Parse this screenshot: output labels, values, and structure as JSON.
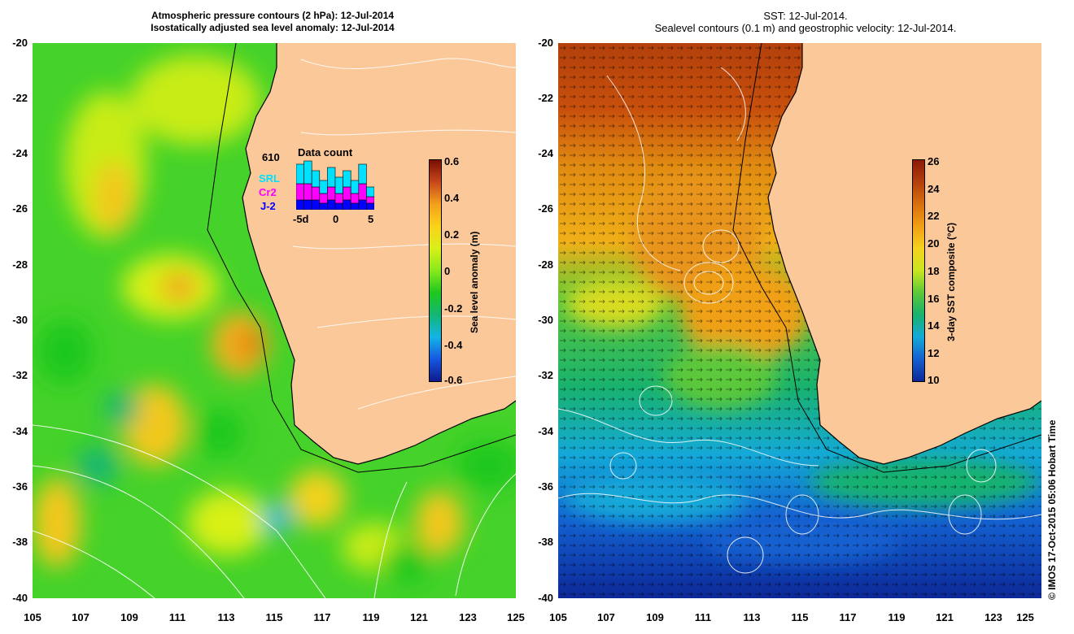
{
  "left_panel": {
    "title_line1": "Atmospheric pressure contours (2 hPa): 12-Jul-2014",
    "title_line2": "Isostatically adjusted sea level anomaly: 12-Jul-2014",
    "colorbar": {
      "title": "Sea level anomaly (m)",
      "ticks": [
        "0.6",
        "0.4",
        "0.2",
        "0",
        "-0.2",
        "-0.4",
        "-0.6"
      ],
      "colors": [
        "#7a0f04",
        "#c8481b",
        "#f3a11c",
        "#fbd21a",
        "#d8f019",
        "#88e81c",
        "#1ec81e",
        "#13b673",
        "#14b4e6",
        "#1657e0",
        "#0f1a8c"
      ]
    },
    "data_count": {
      "title": "Data count",
      "total": "610",
      "satellites": [
        {
          "name": "SRL",
          "color": "#00e0ff"
        },
        {
          "name": "Cr2",
          "color": "#ff00ff"
        },
        {
          "name": "J-2",
          "color": "#0000ff"
        }
      ],
      "axis_ticks": [
        "-5d",
        "0",
        "5"
      ],
      "bars": [
        {
          "j2": 3,
          "cr2": 5,
          "srl": 6
        },
        {
          "j2": 3,
          "cr2": 5,
          "srl": 7
        },
        {
          "j2": 3,
          "cr2": 4,
          "srl": 5
        },
        {
          "j2": 2,
          "cr2": 3,
          "srl": 4
        },
        {
          "j2": 3,
          "cr2": 4,
          "srl": 6
        },
        {
          "j2": 2,
          "cr2": 3,
          "srl": 5
        },
        {
          "j2": 3,
          "cr2": 4,
          "srl": 5
        },
        {
          "j2": 2,
          "cr2": 3,
          "srl": 4
        },
        {
          "j2": 3,
          "cr2": 5,
          "srl": 6
        },
        {
          "j2": 2,
          "cr2": 2,
          "srl": 3
        }
      ]
    }
  },
  "right_panel": {
    "title_line1": "SST: 12-Jul-2014.",
    "title_line2": "Sealevel contours (0.1 m) and geostrophic velocity: 12-Jul-2014.",
    "colorbar": {
      "title": "3-day SST composite (°C)",
      "ticks": [
        "26",
        "24",
        "22",
        "20",
        "18",
        "16",
        "14",
        "12",
        "10"
      ],
      "colors": [
        "#8b1a0a",
        "#b3400c",
        "#d9700f",
        "#f0a015",
        "#f5d21e",
        "#c8e61e",
        "#5cc83a",
        "#18b26e",
        "#14a9d8",
        "#1460d0",
        "#0c2898"
      ]
    }
  },
  "y_ticks": [
    "-20",
    "-22",
    "-24",
    "-26",
    "-28",
    "-30",
    "-32",
    "-34",
    "-36",
    "-38",
    "-40"
  ],
  "x_ticks": [
    "105",
    "107",
    "109",
    "111",
    "113",
    "115",
    "117",
    "119",
    "121",
    "123",
    "125"
  ],
  "credit": "© IMOS 17-Oct-2015 05:06 Hobart Time",
  "colors": {
    "land": "#fbc89a",
    "coast": "#000000",
    "contour": "#ffffff"
  }
}
